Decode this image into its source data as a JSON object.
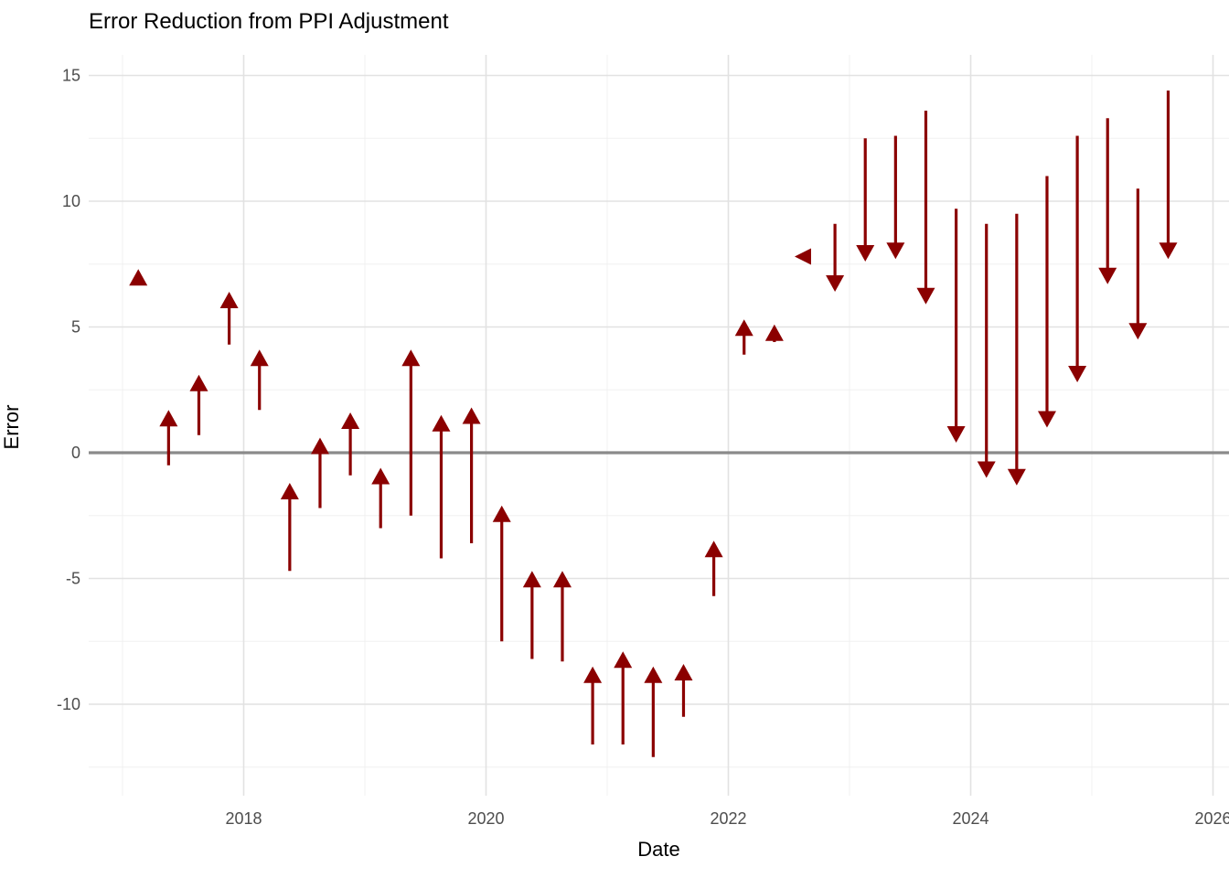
{
  "title": "Error Reduction from PPI Adjustment",
  "chart_data": {
    "type": "scatter",
    "subtype": "vertical-arrow-segments",
    "title": "Error Reduction from PPI Adjustment",
    "xlabel": "Date",
    "ylabel": "Error",
    "x_tick_labels": [
      "2018",
      "2020",
      "2022",
      "2024",
      "2026"
    ],
    "x_ticks": [
      2018,
      2020,
      2022,
      2024,
      2026
    ],
    "x_minor": [
      2017,
      2019,
      2021,
      2023,
      2025
    ],
    "y_tick_labels": [
      "15",
      "10",
      "5",
      "0",
      "-5",
      "-10"
    ],
    "y_ticks": [
      15,
      10,
      5,
      0,
      -5,
      -10
    ],
    "y_minor": [
      12.5,
      7.5,
      2.5,
      -2.5,
      -7.5,
      -12.5
    ],
    "xlim": [
      2016.7,
      2026.1
    ],
    "ylim": [
      -13.6,
      15.8
    ],
    "zero_line": 0,
    "grid": "major+minor",
    "legend": "none",
    "colors": {
      "arrow": "#8B0000",
      "zero_line": "#8A8A8A",
      "grid_major": "#E2E2E2",
      "grid_minor": "#F0F0F0",
      "tick_text": "#4D4D4D",
      "title_text": "#000000",
      "background": "#FFFFFF"
    },
    "series": [
      {
        "date": 2017.13,
        "start": 6.7,
        "end": 7.3,
        "head": "up"
      },
      {
        "date": 2017.38,
        "start": -0.5,
        "end": 1.7,
        "head": "up"
      },
      {
        "date": 2017.63,
        "start": 0.7,
        "end": 3.1,
        "head": "up"
      },
      {
        "date": 2017.88,
        "start": 4.3,
        "end": 6.4,
        "head": "up"
      },
      {
        "date": 2018.13,
        "start": 1.7,
        "end": 4.1,
        "head": "up"
      },
      {
        "date": 2018.38,
        "start": -4.7,
        "end": -1.2,
        "head": "up"
      },
      {
        "date": 2018.63,
        "start": -2.2,
        "end": 0.6,
        "head": "up"
      },
      {
        "date": 2018.88,
        "start": -0.9,
        "end": 1.6,
        "head": "up"
      },
      {
        "date": 2019.13,
        "start": -3.0,
        "end": -0.6,
        "head": "up"
      },
      {
        "date": 2019.38,
        "start": -2.5,
        "end": 4.1,
        "head": "up"
      },
      {
        "date": 2019.63,
        "start": -4.2,
        "end": 1.5,
        "head": "up"
      },
      {
        "date": 2019.88,
        "start": -3.6,
        "end": 1.8,
        "head": "up"
      },
      {
        "date": 2020.13,
        "start": -7.5,
        "end": -2.1,
        "head": "up"
      },
      {
        "date": 2020.38,
        "start": -8.2,
        "end": -4.7,
        "head": "up"
      },
      {
        "date": 2020.63,
        "start": -8.3,
        "end": -4.7,
        "head": "up"
      },
      {
        "date": 2020.88,
        "start": -11.6,
        "end": -8.5,
        "head": "up"
      },
      {
        "date": 2021.13,
        "start": -11.6,
        "end": -7.9,
        "head": "up"
      },
      {
        "date": 2021.38,
        "start": -12.1,
        "end": -8.5,
        "head": "up"
      },
      {
        "date": 2021.63,
        "start": -10.5,
        "end": -8.4,
        "head": "up"
      },
      {
        "date": 2021.88,
        "start": -5.7,
        "end": -3.5,
        "head": "up"
      },
      {
        "date": 2022.13,
        "start": 3.9,
        "end": 5.3,
        "head": "up"
      },
      {
        "date": 2022.38,
        "start": 4.4,
        "end": 5.1,
        "head": "up"
      },
      {
        "date": 2022.63,
        "start": 7.8,
        "end": 7.8,
        "head": "left"
      },
      {
        "date": 2022.88,
        "start": 9.1,
        "end": 6.4,
        "head": "down"
      },
      {
        "date": 2023.13,
        "start": 12.5,
        "end": 7.6,
        "head": "down"
      },
      {
        "date": 2023.38,
        "start": 12.6,
        "end": 7.7,
        "head": "down"
      },
      {
        "date": 2023.63,
        "start": 13.6,
        "end": 5.9,
        "head": "down"
      },
      {
        "date": 2023.88,
        "start": 9.7,
        "end": 0.4,
        "head": "down"
      },
      {
        "date": 2024.13,
        "start": 9.1,
        "end": -1.0,
        "head": "down"
      },
      {
        "date": 2024.38,
        "start": 9.5,
        "end": -1.3,
        "head": "down"
      },
      {
        "date": 2024.63,
        "start": 11.0,
        "end": 1.0,
        "head": "down"
      },
      {
        "date": 2024.88,
        "start": 12.6,
        "end": 2.8,
        "head": "down"
      },
      {
        "date": 2025.13,
        "start": 13.3,
        "end": 6.7,
        "head": "down"
      },
      {
        "date": 2025.38,
        "start": 10.5,
        "end": 4.5,
        "head": "down"
      },
      {
        "date": 2025.63,
        "start": 14.4,
        "end": 7.7,
        "head": "down"
      }
    ]
  }
}
